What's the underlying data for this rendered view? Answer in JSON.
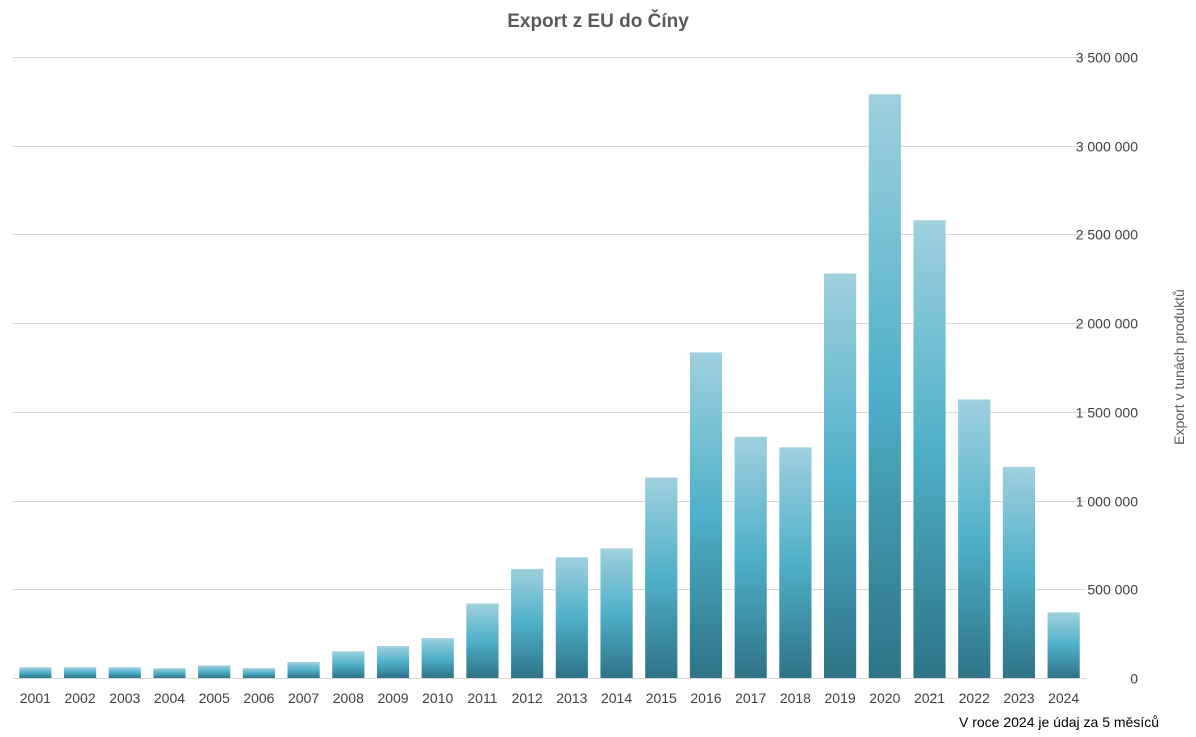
{
  "chart_data": {
    "type": "bar",
    "title": "Export z EU do Číny",
    "ylabel": "Export v tunách produktů",
    "xlabel": "",
    "note": "V roce 2024 je údaj za 5 měsíců",
    "categories": [
      "2001",
      "2002",
      "2003",
      "2004",
      "2005",
      "2006",
      "2007",
      "2008",
      "2009",
      "2010",
      "2011",
      "2012",
      "2013",
      "2014",
      "2015",
      "2016",
      "2017",
      "2018",
      "2019",
      "2020",
      "2021",
      "2022",
      "2023",
      "2024"
    ],
    "values": [
      60000,
      60000,
      60000,
      55000,
      70000,
      55000,
      90000,
      150000,
      180000,
      225000,
      420000,
      615000,
      680000,
      730000,
      1130000,
      1835000,
      1360000,
      1300000,
      2280000,
      3290000,
      2580000,
      1570000,
      1190000,
      370000
    ],
    "ylim": [
      0,
      3500000
    ],
    "yticks": [
      0,
      500000,
      1000000,
      1500000,
      2000000,
      2500000,
      3000000,
      3500000
    ],
    "ytick_labels": [
      "0",
      "500 000",
      "1 000 000",
      "1 500 000",
      "2 000 000",
      "2 500 000",
      "3 000 000",
      "3 500 000"
    ],
    "yaxis_side": "right",
    "grid": true,
    "legend": "none",
    "colors": {
      "bar_top": "#9fd0de",
      "bar_mid": "#4fb0c9",
      "bar_bottom": "#2e7387",
      "grid": "#d9d9d9"
    }
  }
}
